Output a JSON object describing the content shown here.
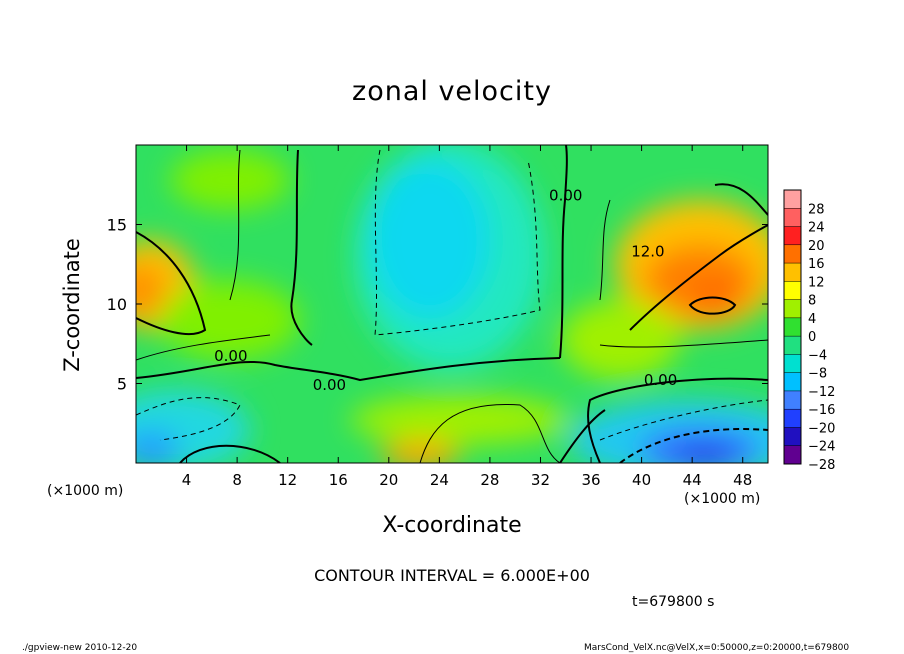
{
  "chart_data": {
    "type": "heatmap",
    "title": "zonal velocity",
    "xlabel": "X-coordinate",
    "ylabel": "Z-coordinate",
    "x_unit_label": "(×1000 m)",
    "xlim": [
      0,
      50
    ],
    "ylim": [
      0,
      20
    ],
    "x_ticks": [
      4,
      8,
      12,
      16,
      20,
      24,
      28,
      32,
      36,
      40,
      44,
      48
    ],
    "y_ticks": [
      5,
      10,
      15
    ],
    "colorbar": {
      "levels": [
        28,
        24,
        20,
        16,
        12,
        8,
        4,
        0,
        -4,
        -8,
        -12,
        -16,
        -20,
        -24,
        -28
      ],
      "colors": [
        "#ffa0a0",
        "#ff6060",
        "#ff2020",
        "#ff7000",
        "#ffc000",
        "#ffff00",
        "#a0f000",
        "#30e030",
        "#20e080",
        "#00e0d0",
        "#00c0ff",
        "#4080ff",
        "#2040ff",
        "#2010c0",
        "#600090"
      ]
    },
    "contour_labels": [
      {
        "text": "0.00",
        "x": 7.5,
        "z": 6.4
      },
      {
        "text": "0.00",
        "x": 15.3,
        "z": 4.6
      },
      {
        "text": "0.00",
        "x": 34.0,
        "z": 16.5
      },
      {
        "text": "12.0",
        "x": 40.5,
        "z": 13.0
      },
      {
        "text": "0.00",
        "x": 41.5,
        "z": 4.9
      }
    ],
    "contour_interval": "CONTOUR INTERVAL = 6.000E+00",
    "time_label": "t=679800 s"
  },
  "footer": {
    "left": "./gpview-new  2010-12-20",
    "right": "MarsCond_VelX.nc@VelX,x=0:50000,z=0:20000,t=679800"
  },
  "colors": {
    "background": "#00e070",
    "positive_max": "#ff2020",
    "negative_min": "#600090"
  }
}
